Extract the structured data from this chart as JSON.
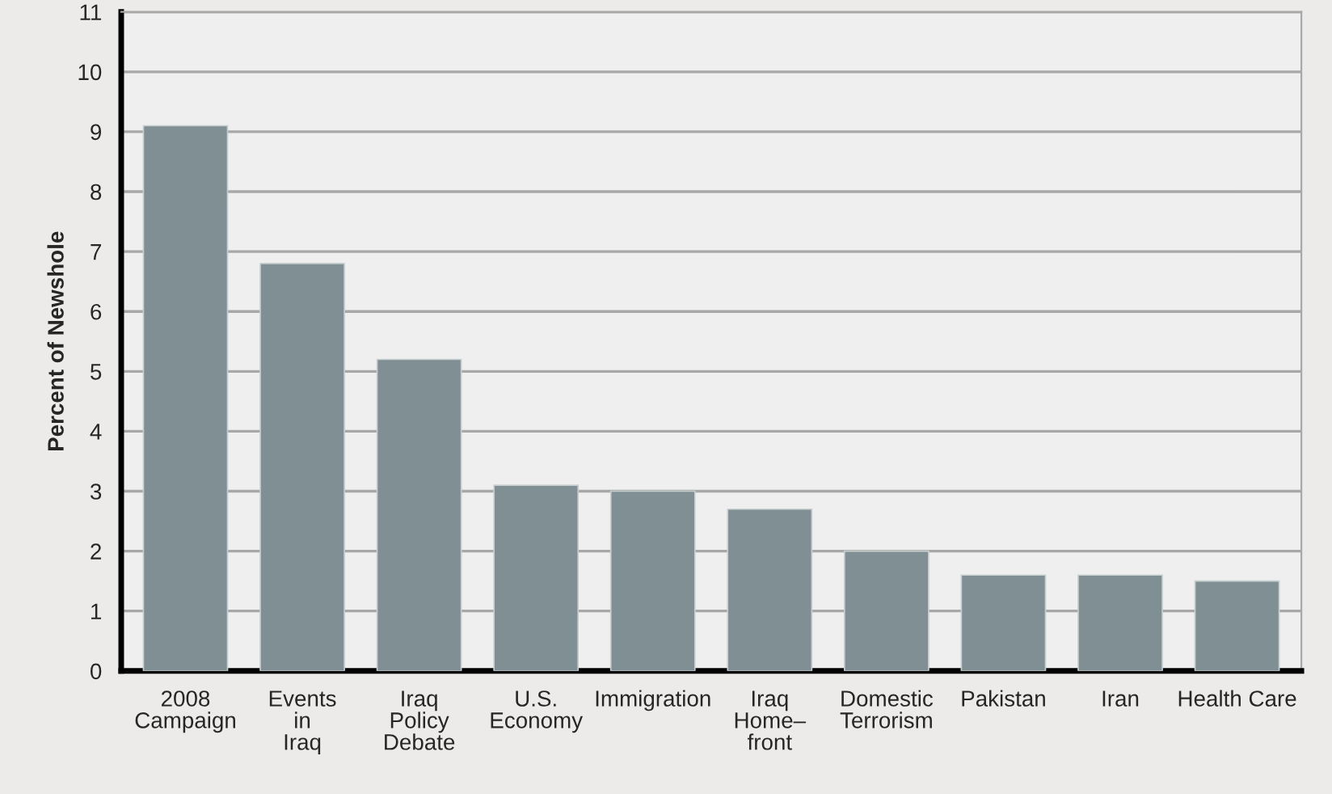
{
  "chart_data": {
    "type": "bar",
    "ylabel": "Percent of Newshole",
    "categories": [
      "2008\nCampaign",
      "Events\nin\nIraq",
      "Iraq\nPolicy\nDebate",
      "U.S.\nEconomy",
      "Immigration",
      "Iraq\nHome–\nfront",
      "Domestic\nTerrorism",
      "Pakistan",
      "Iran",
      "Health Care"
    ],
    "values": [
      9.1,
      6.8,
      5.2,
      3.1,
      3.0,
      2.7,
      2.0,
      1.6,
      1.6,
      1.5
    ],
    "color": "#7f8f93",
    "ylim": [
      0,
      11
    ],
    "yticks": [
      0,
      1,
      2,
      3,
      4,
      5,
      6,
      7,
      8,
      9,
      10,
      11
    ],
    "grid": "y",
    "legend": false
  }
}
